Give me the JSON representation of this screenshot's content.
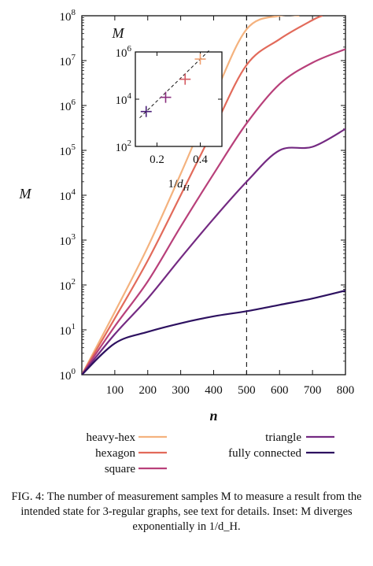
{
  "figure": {
    "caption": "FIG. 4: The number of measurement samples M to measure a result from the intended state for 3-regular graphs, see text for details. Inset: M diverges exponentially in 1/d_H."
  },
  "chart_data": [
    {
      "type": "line",
      "xlabel": "n",
      "ylabel": "M",
      "xlim": [
        0,
        800
      ],
      "ylim": [
        1,
        100000000
      ],
      "yscale": "log",
      "xticks": [
        "100",
        "200",
        "300",
        "400",
        "500",
        "600",
        "700",
        "800"
      ],
      "yticks": [
        "10^0",
        "10^1",
        "10^2",
        "10^3",
        "10^4",
        "10^5",
        "10^6",
        "10^7",
        "10^8"
      ],
      "vline": 500,
      "legend_position": "below",
      "series": [
        {
          "name": "heavy-hex",
          "color": "#f4b27e",
          "x": [
            0,
            100,
            200,
            300,
            400,
            500,
            600,
            660
          ],
          "y": [
            1,
            25,
            700,
            30000,
            1500000,
            50000000,
            100000000,
            100000000
          ]
        },
        {
          "name": "hexagon",
          "color": "#e26a5a",
          "x": [
            0,
            100,
            200,
            300,
            400,
            500,
            600,
            700,
            730
          ],
          "y": [
            1,
            18,
            350,
            10000,
            300000,
            8000000,
            30000000,
            80000000,
            100000000
          ]
        },
        {
          "name": "square",
          "color": "#b8407a",
          "x": [
            0,
            100,
            200,
            300,
            400,
            500,
            600,
            700,
            800
          ],
          "y": [
            1,
            12,
            120,
            2000,
            30000,
            400000,
            3000000,
            9000000,
            18000000
          ]
        },
        {
          "name": "triangle",
          "color": "#742a82",
          "x": [
            0,
            100,
            200,
            300,
            400,
            500,
            600,
            700,
            800
          ],
          "y": [
            1,
            8,
            50,
            400,
            3000,
            20000,
            100000,
            120000,
            300000
          ]
        },
        {
          "name": "fully connected",
          "color": "#2d1160",
          "x": [
            0,
            100,
            200,
            300,
            400,
            500,
            600,
            700,
            800
          ],
          "y": [
            1,
            5,
            9,
            14,
            20,
            26,
            36,
            50,
            75
          ]
        }
      ]
    },
    {
      "type": "scatter",
      "xlabel": "1/d_H",
      "ylabel": "M",
      "xlim": [
        0.1,
        0.5
      ],
      "ylim": [
        100,
        1000000
      ],
      "yscale": "log",
      "xticks": [
        "0.2",
        "0.4"
      ],
      "yticks": [
        "10^2",
        "10^4",
        "10^6"
      ],
      "fit_line": "dashed",
      "points": [
        {
          "x": 0.15,
          "y": 3000,
          "color": "#4a1e78"
        },
        {
          "x": 0.24,
          "y": 12000,
          "color": "#8a2e7e"
        },
        {
          "x": 0.33,
          "y": 70000,
          "color": "#d45a62"
        },
        {
          "x": 0.4,
          "y": 500000,
          "color": "#f0a070"
        }
      ]
    }
  ]
}
